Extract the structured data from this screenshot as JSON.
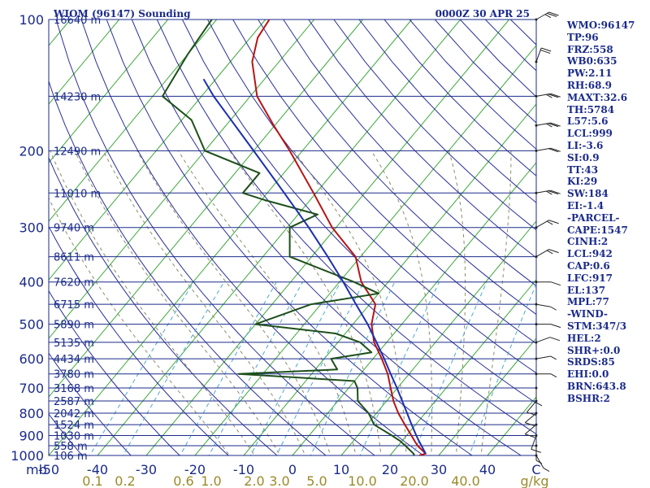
{
  "header": {
    "station": "WIOM (96147) Sounding",
    "time": "0000Z 30 APR 25"
  },
  "indices": [
    "WMO:96147",
    "TP:96",
    "FRZ:558",
    "WB0:635",
    "PW:2.11",
    "RH:68.9",
    "MAXT:32.6",
    "TH:5784",
    "L57:5.6",
    "LCL:999",
    "LI:-3.6",
    "SI:0.9",
    "TT:43",
    "KI:29",
    "SW:184",
    "EI:-1.4",
    "-PARCEL-",
    "CAPE:1547",
    "CINH:2",
    "LCL:942",
    "CAP:0.6",
    "LFC:917",
    "EL:137",
    "MPL:77",
    "-WIND-",
    "STM:347/3",
    "HEL:2",
    "SHR+:0.0",
    "SRDS:85",
    "EHI:0.0",
    "BRN:643.8",
    "BSHR:2"
  ],
  "chart_data": {
    "type": "line",
    "diagram": "skew-t log-p",
    "y_unit": "mb",
    "x_unit": "C",
    "pressure_range": [
      1000,
      100
    ],
    "temperature_range": [
      -50,
      0
    ],
    "pressure_levels": [
      {
        "p": 100,
        "label": "100",
        "height": "16640 m"
      },
      {
        "p": 150,
        "label": "",
        "height": "14230 m"
      },
      {
        "p": 200,
        "label": "200",
        "height": "12490 m"
      },
      {
        "p": 250,
        "label": "",
        "height": "11010 m"
      },
      {
        "p": 300,
        "label": "300",
        "height": "9740 m"
      },
      {
        "p": 350,
        "label": "",
        "height": "8611 m"
      },
      {
        "p": 400,
        "label": "400",
        "height": "7620 m"
      },
      {
        "p": 450,
        "label": "",
        "height": "6715 m"
      },
      {
        "p": 500,
        "label": "500",
        "height": "5890 m"
      },
      {
        "p": 550,
        "label": "",
        "height": "5135 m"
      },
      {
        "p": 600,
        "label": "600",
        "height": "4434 m"
      },
      {
        "p": 650,
        "label": "",
        "height": "3780 m"
      },
      {
        "p": 700,
        "label": "700",
        "height": "3168 m"
      },
      {
        "p": 750,
        "label": "",
        "height": "2587 m"
      },
      {
        "p": 800,
        "label": "800",
        "height": "2042 m"
      },
      {
        "p": 850,
        "label": "",
        "height": "1524 m"
      },
      {
        "p": 900,
        "label": "900",
        "height": "1030 m"
      },
      {
        "p": 950,
        "label": "",
        "height": "558 m"
      },
      {
        "p": 1000,
        "label": "1000",
        "height": "106 m"
      }
    ],
    "temperature_ticks": [
      "-50",
      "-40",
      "-30",
      "-20",
      "-10",
      "0",
      "10",
      "20",
      "30",
      "40",
      "C"
    ],
    "temperature_tick_values": [
      -50,
      -40,
      -30,
      -20,
      -10,
      0,
      10,
      20,
      30,
      40,
      50
    ],
    "mixing_ratio_labels": [
      "0.1",
      "0.2",
      "0.6",
      "1.0",
      "2.0",
      "3.0",
      "5.0",
      "10.0",
      "20.0",
      "40.0",
      "g/kg"
    ],
    "mixing_ratio_values": [
      0.1,
      0.2,
      0.6,
      1.0,
      2.0,
      3.0,
      5.0,
      10.0,
      20.0,
      40.0
    ],
    "series": [
      {
        "role": "temperature",
        "color": "#b81414",
        "points": [
          [
            1000,
            26.0
          ],
          [
            990,
            27.0
          ],
          [
            950,
            24.0
          ],
          [
            925,
            22.5
          ],
          [
            900,
            21.0
          ],
          [
            850,
            17.8
          ],
          [
            800,
            14.5
          ],
          [
            750,
            11.4
          ],
          [
            700,
            8.6
          ],
          [
            650,
            5.6
          ],
          [
            600,
            1.8
          ],
          [
            550,
            -2.6
          ],
          [
            500,
            -6.2
          ],
          [
            450,
            -8.8
          ],
          [
            400,
            -15.5
          ],
          [
            350,
            -21.0
          ],
          [
            300,
            -30.8
          ],
          [
            250,
            -40.5
          ],
          [
            200,
            -52.6
          ],
          [
            175,
            -60.2
          ],
          [
            150,
            -68.6
          ],
          [
            125,
            -75.5
          ],
          [
            110,
            -78.5
          ],
          [
            100,
            -79.2
          ]
        ]
      },
      {
        "role": "dewpoint",
        "color": "#1d4f1a",
        "points": [
          [
            1000,
            25.0
          ],
          [
            990,
            24.5
          ],
          [
            950,
            21.5
          ],
          [
            925,
            19.5
          ],
          [
            900,
            17.0
          ],
          [
            850,
            11.5
          ],
          [
            800,
            8.4
          ],
          [
            750,
            4.1
          ],
          [
            700,
            1.8
          ],
          [
            675,
            0.0
          ],
          [
            650,
            -25.0
          ],
          [
            635,
            -5.5
          ],
          [
            600,
            -8.6
          ],
          [
            580,
            -1.4
          ],
          [
            550,
            -5.5
          ],
          [
            525,
            -12.0
          ],
          [
            500,
            -30.0
          ],
          [
            450,
            -22.0
          ],
          [
            425,
            -10.0
          ],
          [
            400,
            -17.0
          ],
          [
            350,
            -34.5
          ],
          [
            300,
            -39.5
          ],
          [
            280,
            -36.0
          ],
          [
            260,
            -49.0
          ],
          [
            250,
            -55.0
          ],
          [
            225,
            -55.0
          ],
          [
            200,
            -70.0
          ],
          [
            170,
            -78.0
          ],
          [
            150,
            -88.0
          ],
          [
            120,
            -90.0
          ],
          [
            100,
            -91.0
          ]
        ]
      },
      {
        "role": "parcel",
        "color": "#1d2fae",
        "points": [
          [
            990,
            27.0
          ],
          [
            950,
            24.8
          ],
          [
            925,
            23.4
          ],
          [
            900,
            22.0
          ],
          [
            850,
            19.2
          ],
          [
            800,
            16.3
          ],
          [
            750,
            13.2
          ],
          [
            700,
            9.9
          ],
          [
            650,
            6.2
          ],
          [
            600,
            2.3
          ],
          [
            550,
            -2.1
          ],
          [
            500,
            -7.0
          ],
          [
            450,
            -12.8
          ],
          [
            400,
            -19.2
          ],
          [
            350,
            -26.7
          ],
          [
            300,
            -35.6
          ],
          [
            250,
            -46.5
          ],
          [
            200,
            -60.0
          ],
          [
            150,
            -77.5
          ],
          [
            137,
            -82.5
          ]
        ]
      }
    ],
    "wind_barbs": [
      {
        "p": 1000,
        "dir": 150,
        "spd": 5
      },
      {
        "p": 950,
        "dir": 180,
        "spd": 5
      },
      {
        "p": 900,
        "dir": 200,
        "spd": 10
      },
      {
        "p": 850,
        "dir": 230,
        "spd": 10
      },
      {
        "p": 800,
        "dir": 230,
        "spd": 10
      },
      {
        "p": 750,
        "dir": 220,
        "spd": 10
      },
      {
        "p": 700,
        "dir": 180,
        "spd": 5
      },
      {
        "p": 650,
        "dir": 90,
        "spd": 5
      },
      {
        "p": 600,
        "dir": 80,
        "spd": 5
      },
      {
        "p": 550,
        "dir": 70,
        "spd": 10
      },
      {
        "p": 500,
        "dir": 90,
        "spd": 10
      },
      {
        "p": 450,
        "dir": 100,
        "spd": 5
      },
      {
        "p": 400,
        "dir": 90,
        "spd": 10
      },
      {
        "p": 350,
        "dir": 60,
        "spd": 15
      },
      {
        "p": 300,
        "dir": 60,
        "spd": 15
      },
      {
        "p": 250,
        "dir": 80,
        "spd": 25
      },
      {
        "p": 200,
        "dir": 80,
        "spd": 20
      },
      {
        "p": 175,
        "dir": 80,
        "spd": 25
      },
      {
        "p": 150,
        "dir": 80,
        "spd": 25
      },
      {
        "p": 125,
        "dir": 20,
        "spd": 20
      },
      {
        "p": 100,
        "dir": 60,
        "spd": 25
      }
    ]
  }
}
